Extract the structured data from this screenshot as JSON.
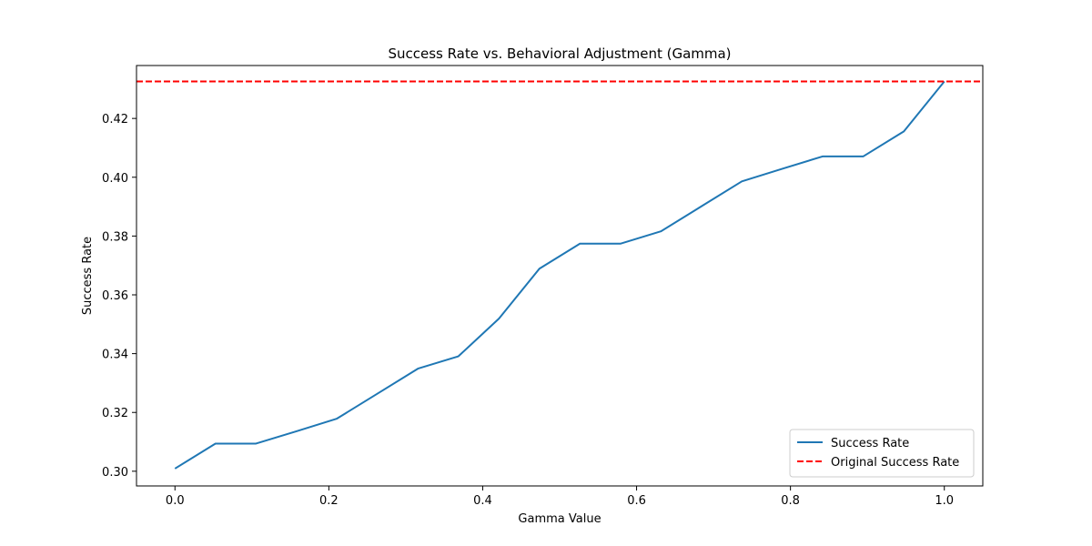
{
  "chart_data": {
    "type": "line",
    "title": "Success Rate vs. Behavioral Adjustment (Gamma)",
    "xlabel": "Gamma Value",
    "ylabel": "Success Rate",
    "xlim": [
      -0.05,
      1.05
    ],
    "ylim": [
      0.295,
      0.438
    ],
    "xticks": [
      0.0,
      0.2,
      0.4,
      0.6,
      0.8,
      1.0
    ],
    "xtick_labels": [
      "0.0",
      "0.2",
      "0.4",
      "0.6",
      "0.8",
      "1.0"
    ],
    "yticks": [
      0.3,
      0.32,
      0.34,
      0.36,
      0.38,
      0.4,
      0.42
    ],
    "ytick_labels": [
      "0.30",
      "0.32",
      "0.34",
      "0.36",
      "0.38",
      "0.40",
      "0.42"
    ],
    "grid": false,
    "legend_position": "bottom-right",
    "series": [
      {
        "name": "Success Rate",
        "color": "#1f77b4",
        "style": "solid",
        "x": [
          0.0,
          0.0526,
          0.1053,
          0.1579,
          0.2105,
          0.2632,
          0.3158,
          0.3684,
          0.4211,
          0.4737,
          0.5263,
          0.5789,
          0.6316,
          0.6842,
          0.7368,
          0.7895,
          0.8421,
          0.8947,
          0.9474,
          1.0
        ],
        "values": [
          0.3009,
          0.3094,
          0.3094,
          0.3136,
          0.3179,
          0.3264,
          0.3349,
          0.3391,
          0.3519,
          0.3689,
          0.3774,
          0.3774,
          0.3816,
          0.3901,
          0.3986,
          0.4029,
          0.4071,
          0.4071,
          0.4156,
          0.4326
        ]
      },
      {
        "name": "Original Success Rate",
        "color": "#ff0000",
        "style": "dashed",
        "hline": 0.4326
      }
    ]
  }
}
